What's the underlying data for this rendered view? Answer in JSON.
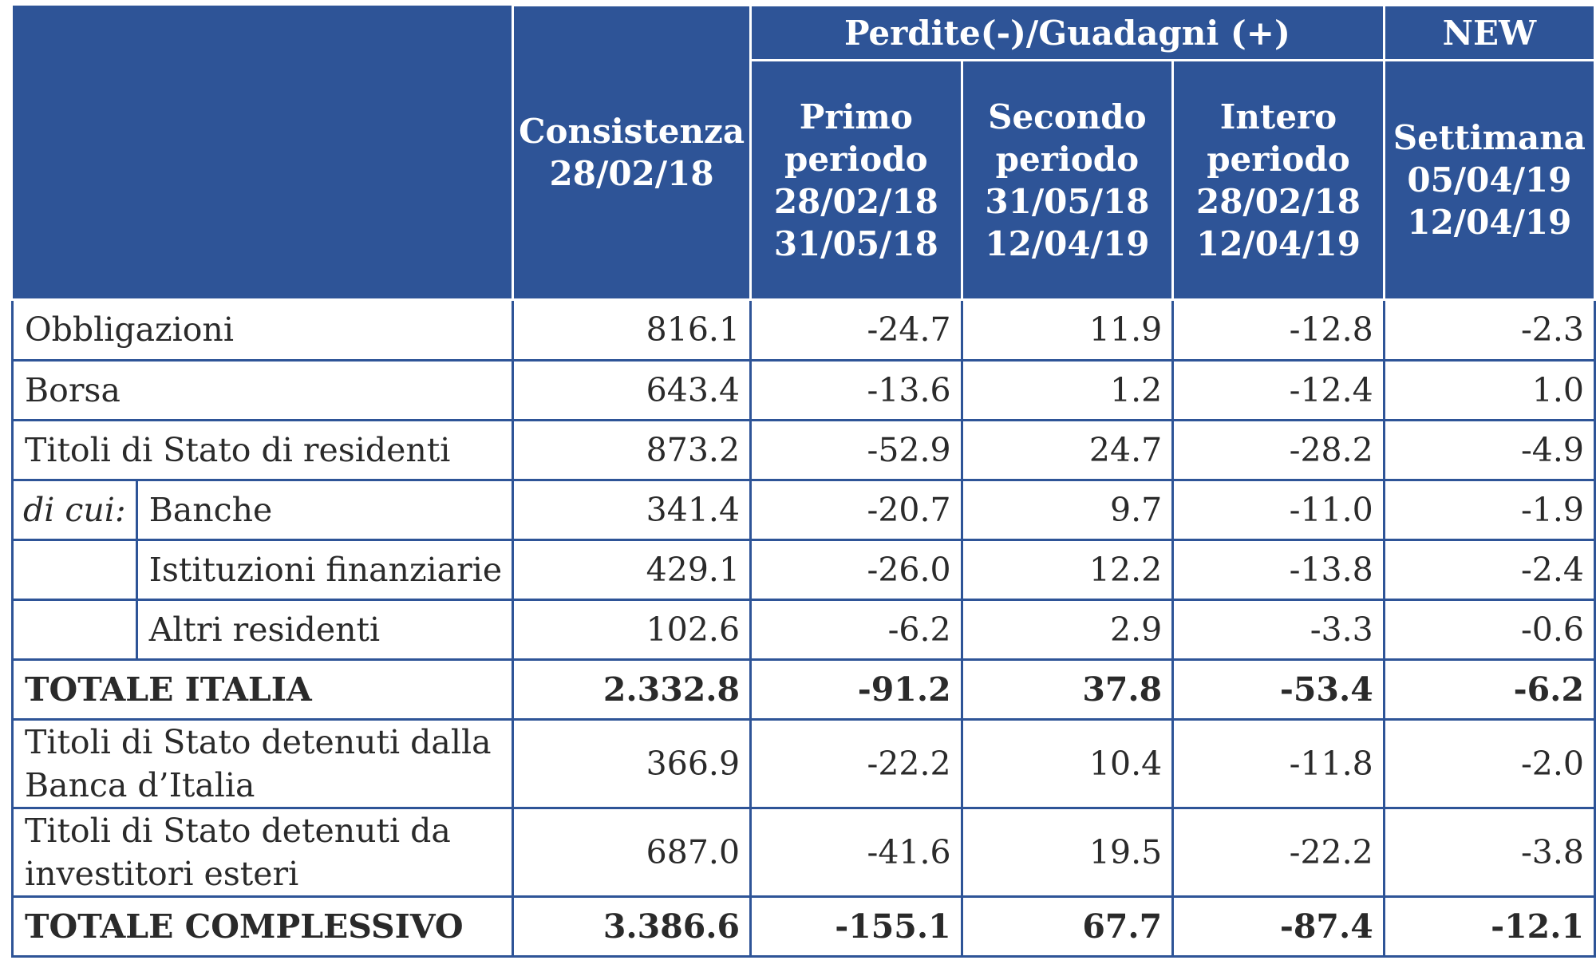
{
  "header": {
    "col_consistenza": "Consistenza 28/02/18",
    "group_label": "Perdite(-)/Guadagni (+)",
    "new_label": "NEW",
    "col_primo": "Primo periodo 28/02/18 31/05/18",
    "col_secondo": "Secondo periodo 31/05/18 12/04/19",
    "col_intero": "Intero periodo 28/02/18 12/04/19",
    "col_settimana": "Settimana 05/04/19 12/04/19"
  },
  "rows": [
    {
      "label": "Obbligazioni",
      "consistenza": "816.1",
      "primo": "-24.7",
      "secondo": "11.9",
      "intero": "-12.8",
      "settimana": "-2.3"
    },
    {
      "label": "Borsa",
      "consistenza": "643.4",
      "primo": "-13.6",
      "secondo": "1.2",
      "intero": "-12.4",
      "settimana": "1.0"
    },
    {
      "label": "Titoli di Stato di residenti",
      "consistenza": "873.2",
      "primo": "-52.9",
      "secondo": "24.7",
      "intero": "-28.2",
      "settimana": "-4.9"
    },
    {
      "prefix": "di cui:",
      "label": "Banche",
      "consistenza": "341.4",
      "primo": "-20.7",
      "secondo": "9.7",
      "intero": "-11.0",
      "settimana": "-1.9"
    },
    {
      "label": "Istituzioni finanziarie",
      "consistenza": "429.1",
      "primo": "-26.0",
      "secondo": "12.2",
      "intero": "-13.8",
      "settimana": "-2.4"
    },
    {
      "label": "Altri residenti",
      "consistenza": "102.6",
      "primo": "-6.2",
      "secondo": "2.9",
      "intero": "-3.3",
      "settimana": "-0.6"
    },
    {
      "label": "TOTALE ITALIA",
      "consistenza": "2.332.8",
      "primo": "-91.2",
      "secondo": "37.8",
      "intero": "-53.4",
      "settimana": "-6.2"
    },
    {
      "label": "Titoli di Stato detenuti dalla Banca d’Italia",
      "consistenza": "366.9",
      "primo": "-22.2",
      "secondo": "10.4",
      "intero": "-11.8",
      "settimana": "-2.0"
    },
    {
      "label": "Titoli di Stato detenuti da investitori esteri",
      "consistenza": "687.0",
      "primo": "-41.6",
      "secondo": "19.5",
      "intero": "-22.2",
      "settimana": "-3.8"
    },
    {
      "label": "TOTALE COMPLESSIVO",
      "consistenza": "3.386.6",
      "primo": "-155.1",
      "secondo": "67.7",
      "intero": "-87.4",
      "settimana": "-12.1"
    }
  ],
  "colors": {
    "header_bg": "#2e5497",
    "border": "#2e5497",
    "text": "#2a2a2a"
  }
}
